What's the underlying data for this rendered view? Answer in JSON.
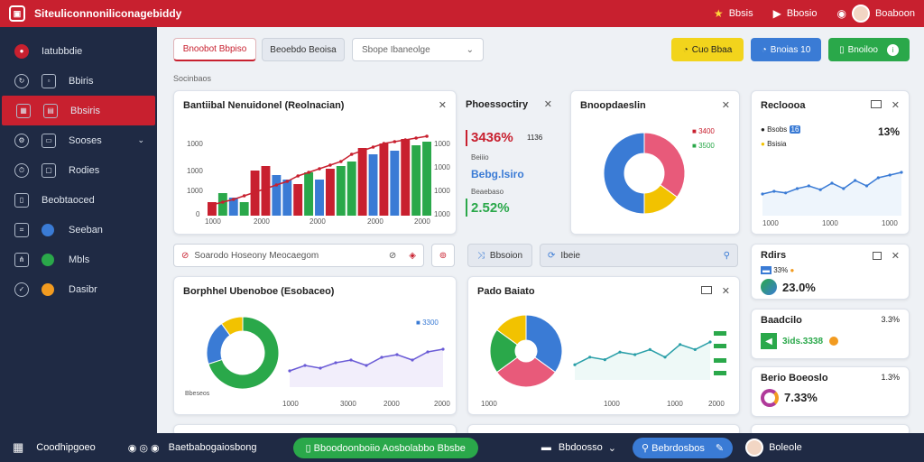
{
  "app": {
    "title": "Siteuliconnoniliconagebiddy"
  },
  "topbar": {
    "item1": "Bbsis",
    "item2": "Bbosio",
    "user": "Boaboon"
  },
  "sidebar": {
    "items": [
      {
        "label": "Iatubbdie",
        "icon": "brand-icon"
      },
      {
        "label": "Bbiris",
        "icon": "refresh-icon"
      },
      {
        "label": "Bbsiris",
        "icon": "grid-icon"
      },
      {
        "label": "Sooses",
        "icon": "settings-icon"
      },
      {
        "label": "Rodies",
        "icon": "clock-icon"
      },
      {
        "label": "Beobtaoced",
        "icon": "document-icon"
      },
      {
        "label": "Seeban",
        "icon": "network-icon"
      },
      {
        "label": "Mbls",
        "icon": "tree-icon"
      },
      {
        "label": "Dasibr",
        "icon": "check-icon"
      }
    ]
  },
  "colors": {
    "brand": "#c8202f",
    "navy": "#1f2a44",
    "blue": "#3a7bd5",
    "green": "#2aa84a",
    "yellow": "#f2c200",
    "orange": "#f29b20"
  },
  "tabs": {
    "active": "Bnoobot Bbpiso",
    "second": "Beoebdo Beoisa",
    "select_placeholder": "Sbope Ibaneolge"
  },
  "actions": {
    "yellow": "Cuo Bbaa",
    "blue": "Bnoias 10",
    "green": "Bnoiloo"
  },
  "section_label": "Socinbaos",
  "card1": {
    "title": "Bantiibal Nenuidonel (Reolnacian)",
    "yticks": [
      "1000",
      "1000",
      "1000",
      "0"
    ],
    "yticks_right": [
      "1000",
      "1000",
      "1000",
      "1000"
    ],
    "xticks": [
      "1000",
      "2000",
      "2000",
      "2000",
      "2000"
    ]
  },
  "chart_data": [
    {
      "type": "bar",
      "title": "Bantiibal Nenuidonel (Reolnacian)",
      "values": [
        15,
        25,
        20,
        15,
        50,
        55,
        45,
        40,
        35,
        48,
        40,
        52,
        55,
        60,
        75,
        68,
        80,
        72,
        85,
        78,
        82
      ],
      "colors": [
        "red",
        "green",
        "blue",
        "green",
        "red",
        "red",
        "blue",
        "blue",
        "red",
        "green",
        "blue",
        "red",
        "green",
        "green",
        "red",
        "blue",
        "red",
        "blue",
        "red",
        "green",
        "green"
      ],
      "line": [
        12,
        15,
        18,
        22,
        26,
        30,
        34,
        38,
        44,
        48,
        52,
        56,
        60,
        68,
        72,
        76,
        80,
        82,
        84,
        86,
        88
      ]
    },
    {
      "type": "pie",
      "values": [
        35,
        15,
        50
      ]
    },
    {
      "type": "line",
      "values": [
        40,
        45,
        42,
        50,
        55,
        48,
        60,
        50,
        65,
        55,
        70,
        75,
        80
      ]
    },
    {
      "type": "pie",
      "values": [
        70,
        20,
        10
      ]
    },
    {
      "type": "area",
      "values": [
        30,
        40,
        35,
        45,
        50,
        40,
        55,
        60,
        50,
        65,
        70
      ]
    },
    {
      "type": "pie",
      "values": [
        35,
        30,
        20,
        15
      ]
    },
    {
      "type": "line",
      "values": [
        30,
        45,
        40,
        55,
        50,
        60,
        45,
        70,
        60,
        75
      ]
    }
  ],
  "card2": {
    "title": "Phoessoctiry",
    "v1": "3436%",
    "v1b": "1136",
    "l1": "Beiiio",
    "v2": "Bebg.lsiro",
    "l2": "Beaebaso",
    "v3": "2.52%"
  },
  "card3": {
    "title": "Bnoopdaeslin",
    "l1": "3400",
    "l2": "3500"
  },
  "card4": {
    "title": "Recloooa",
    "l1": "Bsobs",
    "v1": "16",
    "pct": "13%",
    "l2": "Bsisia",
    "xticks": [
      "1000",
      "1000",
      "1000"
    ]
  },
  "search": {
    "placeholder": "Soarodo Hoseony Meocaegom",
    "filter": "Bbsoion",
    "q": "Ibeie"
  },
  "card5": {
    "title": "Borphhel Ubenoboe (Esobaceo)",
    "legend1": "3300",
    "xticks": [
      "1000",
      "3000",
      "2000",
      "2000"
    ],
    "label": "Bbeseos"
  },
  "card6": {
    "title": "Pado Baiato",
    "xticks": [
      "1000",
      "1000",
      "1000",
      "2000"
    ]
  },
  "card7": {
    "title": "Rdirs",
    "l1": "33%",
    "v1": "23.0%"
  },
  "card8": {
    "title": "Baadcilo",
    "pct": "3.3%",
    "v1": "3ids.3338"
  },
  "card9": {
    "title": "Berio Boeoslo",
    "pct": "1.3%",
    "v1": "7.33%"
  },
  "bottombar": {
    "menu": "Coodhipgoeo",
    "link": "Baetbabogaiosbong",
    "cta": "Bboodoonboiio Aosbolabbo Bbsbe",
    "right": "Bbdoosso",
    "chip": "Bebrdosbos",
    "user": "Boleole"
  }
}
